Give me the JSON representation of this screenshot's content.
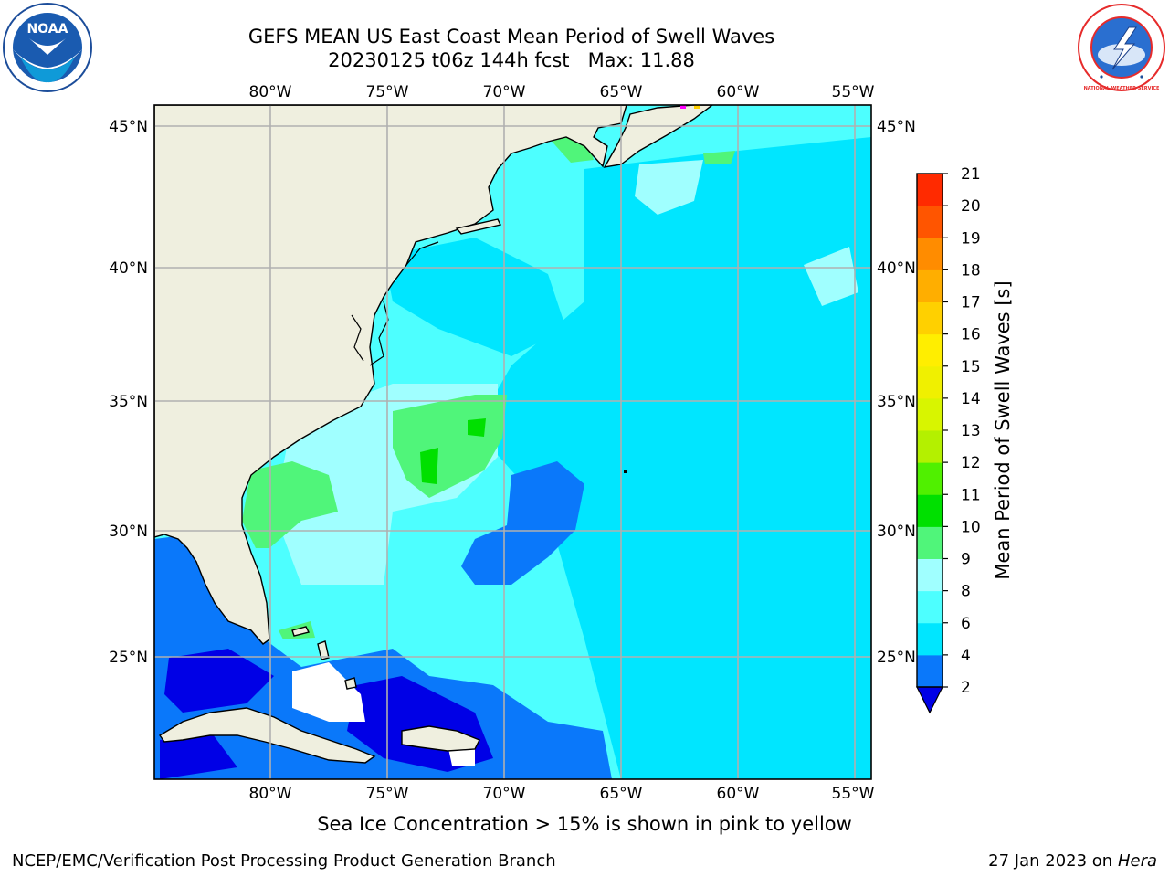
{
  "title": {
    "line1": "GEFS MEAN US East Coast Mean Period of Swell Waves",
    "line2": "20230125 t06z 144h fcst   Max: 11.88"
  },
  "logos": {
    "left": "NOAA",
    "right": "NATIONAL WEATHER SERVICE"
  },
  "map": {
    "region": "US East Coast",
    "lon_labels": [
      "80°W",
      "75°W",
      "70°W",
      "65°W",
      "60°W",
      "55°W"
    ],
    "lat_labels": [
      "45°N",
      "40°N",
      "35°N",
      "30°N",
      "25°N"
    ],
    "land_color": "#efefdf",
    "coast_color": "#000000",
    "grid_color": "#b0b0b0"
  },
  "colorbar": {
    "label": "Mean Period of Swell Waves [s]",
    "ticks": [
      "2",
      "4",
      "6",
      "8",
      "9",
      "10",
      "11",
      "12",
      "13",
      "14",
      "15",
      "16",
      "17",
      "18",
      "19",
      "20",
      "21"
    ],
    "colors": [
      "#0a78fa",
      "#00e6ff",
      "#4dffff",
      "#a0ffff",
      "#50f57a",
      "#00e000",
      "#50f000",
      "#b4f000",
      "#d8f500",
      "#f0f000",
      "#ffee00",
      "#ffd000",
      "#ffae00",
      "#ff8c00",
      "#ff5500",
      "#ff2a00",
      "#ff0000"
    ],
    "under_color": "#0000e6"
  },
  "footnote": "Sea Ice Concentration > 15% is shown in pink to yellow",
  "footer": {
    "left": "NCEP/EMC/Verification Post Processing Product Generation Branch",
    "right_date": "27 Jan 2023 on",
    "right_machine": "Hera"
  }
}
